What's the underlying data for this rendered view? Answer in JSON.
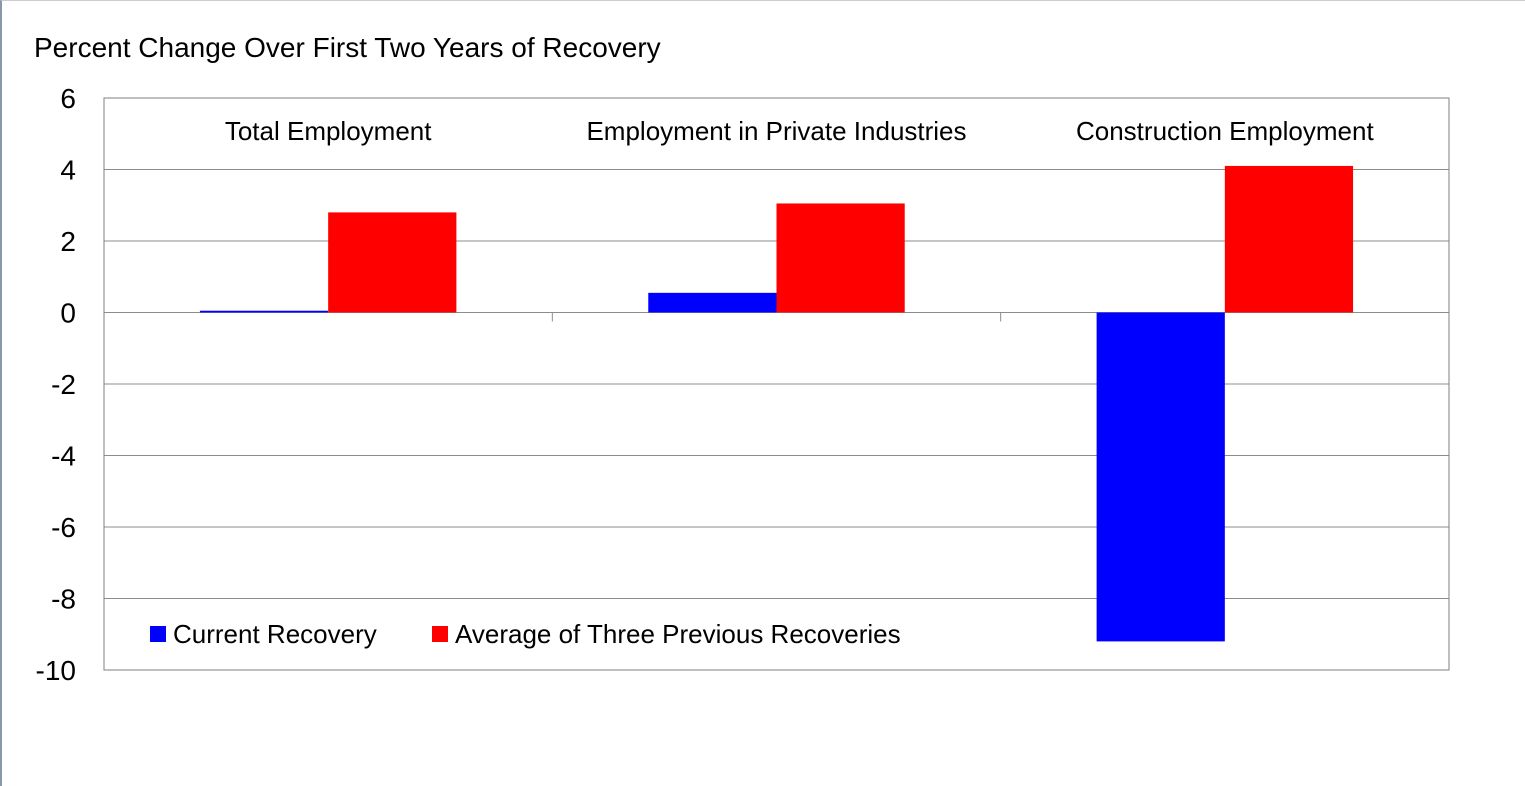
{
  "chart_data": {
    "type": "bar",
    "title": "Percent Change Over First Two Years of Recovery",
    "categories": [
      "Total Employment",
      "Employment in Private Industries",
      "Construction Employment"
    ],
    "series": [
      {
        "name": "Current Recovery",
        "color": "#0000ff",
        "values": [
          0.05,
          0.55,
          -9.2
        ]
      },
      {
        "name": "Average of Three Previous Recoveries",
        "color": "#ff0000",
        "values": [
          2.8,
          3.05,
          4.1
        ]
      }
    ],
    "yticks": [
      "6",
      "4",
      "2",
      "0",
      "-2",
      "-4",
      "-6",
      "-8",
      "-10"
    ],
    "ylim": [
      -10,
      6
    ],
    "grid": true,
    "legend_position": "bottom-left",
    "category_labels_position": "top"
  }
}
